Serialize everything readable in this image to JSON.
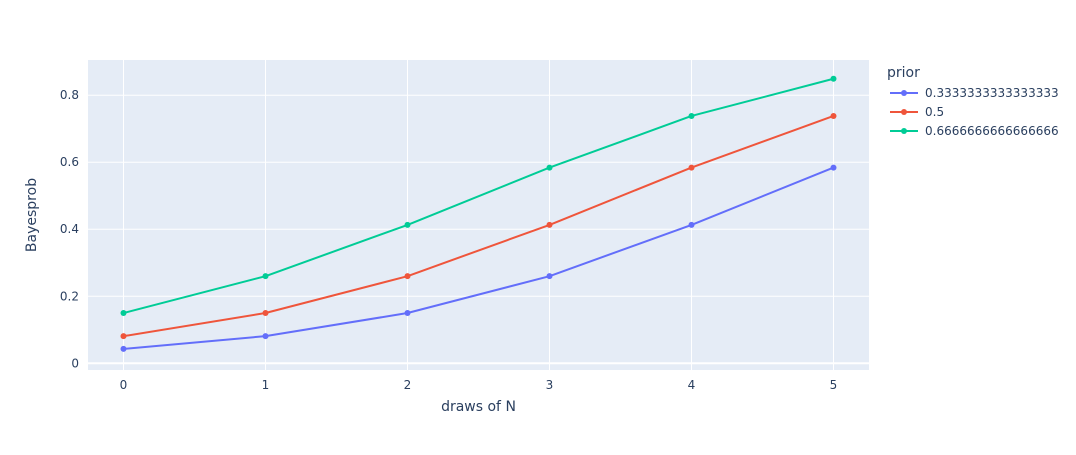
{
  "chart_data": {
    "type": "line",
    "xlabel": "draws of N",
    "ylabel": "Bayesprob",
    "x": [
      0,
      1,
      2,
      3,
      4,
      5
    ],
    "xticks": [
      "0",
      "1",
      "2",
      "3",
      "4",
      "5"
    ],
    "yticks": [
      "0",
      "0.2",
      "0.4",
      "0.6",
      "0.8"
    ],
    "ytick_values": [
      0,
      0.2,
      0.4,
      0.6,
      0.8
    ],
    "xlim": [
      -0.25,
      5.25
    ],
    "ylim": [
      -0.02,
      0.905
    ],
    "grid": true,
    "legend": {
      "title": "prior",
      "placement": "right"
    },
    "series": [
      {
        "name": "0.3333333333333333",
        "color": "#636efa",
        "values": [
          0.043,
          0.081,
          0.15,
          0.26,
          0.413,
          0.584
        ]
      },
      {
        "name": "0.5",
        "color": "#ef553b",
        "values": [
          0.081,
          0.15,
          0.26,
          0.413,
          0.584,
          0.738
        ]
      },
      {
        "name": "0.6666666666666666",
        "color": "#00cc96",
        "values": [
          0.15,
          0.26,
          0.413,
          0.584,
          0.738,
          0.849
        ]
      }
    ],
    "colors": {
      "plot_bg": "#e5ecf6",
      "grid": "#ffffff",
      "text": "#2a3f5f"
    }
  }
}
